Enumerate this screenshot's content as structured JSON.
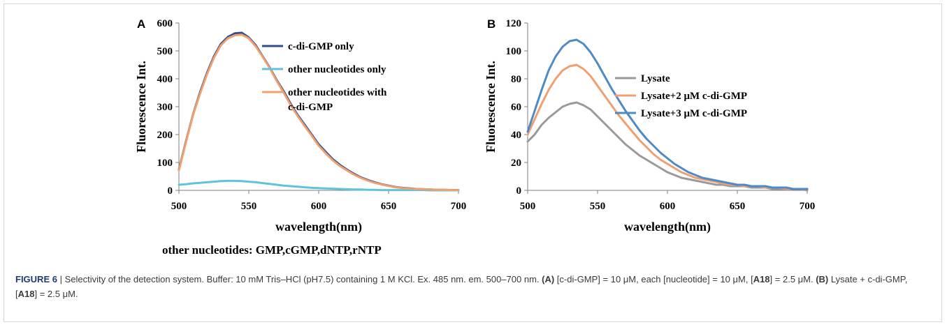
{
  "chart_data": [
    {
      "type": "line",
      "panel_label": "A",
      "ylabel": "Fluorescence Int.",
      "xlabel": "wavelength(nm)",
      "xlim": [
        500,
        700
      ],
      "ylim": [
        0,
        600
      ],
      "xticks": [
        500,
        550,
        600,
        650,
        700
      ],
      "yticks": [
        0,
        100,
        200,
        300,
        400,
        500,
        600
      ],
      "legend_position": "top-right",
      "x": [
        500,
        505,
        510,
        515,
        520,
        525,
        530,
        535,
        540,
        545,
        550,
        555,
        560,
        565,
        570,
        575,
        580,
        585,
        590,
        595,
        600,
        605,
        610,
        615,
        620,
        625,
        630,
        635,
        640,
        645,
        650,
        655,
        660,
        665,
        670,
        675,
        680,
        685,
        690,
        695,
        700
      ],
      "series": [
        {
          "name": "c-di-GMP only",
          "color": "#2e4d8f",
          "values": [
            75,
            175,
            270,
            350,
            420,
            480,
            525,
            550,
            563,
            565,
            548,
            520,
            480,
            440,
            395,
            355,
            310,
            270,
            235,
            200,
            165,
            138,
            112,
            92,
            75,
            60,
            47,
            37,
            29,
            22,
            17,
            12,
            9,
            7,
            5,
            4,
            3,
            2,
            2,
            1,
            1
          ]
        },
        {
          "name": "other nucleotides only",
          "color": "#5ec3df",
          "values": [
            20,
            22,
            25,
            27,
            29,
            31,
            33,
            34,
            34,
            33,
            31,
            29,
            26,
            23,
            20,
            17,
            15,
            13,
            11,
            9,
            8,
            7,
            6,
            5,
            4,
            3,
            3,
            2,
            2,
            1,
            1,
            1,
            1,
            1,
            1,
            1,
            0,
            0,
            0,
            0,
            0
          ]
        },
        {
          "name": "other nucleotides with c-di-GMP",
          "color": "#f0a070",
          "values": [
            72,
            172,
            268,
            345,
            415,
            475,
            520,
            545,
            556,
            558,
            545,
            516,
            478,
            438,
            392,
            350,
            305,
            266,
            230,
            196,
            160,
            133,
            108,
            88,
            72,
            57,
            45,
            35,
            27,
            21,
            16,
            11,
            8,
            6,
            5,
            4,
            3,
            2,
            2,
            1,
            1
          ]
        }
      ],
      "legend_entries": [
        {
          "lines": [
            "c-di-GMP only"
          ],
          "color": "#2e4d8f"
        },
        {
          "lines": [
            "other nucleotides only"
          ],
          "color": "#5ec3df"
        },
        {
          "lines": [
            "other nucleotides with",
            "c-di-GMP"
          ],
          "color": "#f0a070"
        }
      ]
    },
    {
      "type": "line",
      "panel_label": "B",
      "ylabel": "Fluorescence Int.",
      "xlabel": "wavelength(nm)",
      "xlim": [
        500,
        700
      ],
      "ylim": [
        0,
        120
      ],
      "xticks": [
        500,
        550,
        600,
        650,
        700
      ],
      "yticks": [
        0,
        20,
        40,
        60,
        80,
        100,
        120
      ],
      "legend_position": "top-right",
      "x": [
        500,
        505,
        510,
        515,
        520,
        525,
        530,
        535,
        540,
        545,
        550,
        555,
        560,
        565,
        570,
        575,
        580,
        585,
        590,
        595,
        600,
        605,
        610,
        615,
        620,
        625,
        630,
        635,
        640,
        645,
        650,
        655,
        660,
        665,
        670,
        675,
        680,
        685,
        690,
        695,
        700
      ],
      "series": [
        {
          "name": "Lysate",
          "color": "#9a9a9a",
          "values": [
            35,
            40,
            47,
            52,
            56,
            60,
            62,
            63,
            61,
            58,
            53,
            48,
            43,
            38,
            33,
            29,
            25,
            22,
            19,
            16,
            13,
            11,
            9,
            8,
            7,
            6,
            5,
            4,
            4,
            3,
            3,
            3,
            2,
            2,
            2,
            1,
            1,
            1,
            1,
            1,
            0
          ]
        },
        {
          "name": "Lysate+2 μM c-di-GMP",
          "color": "#f0a070",
          "values": [
            40,
            51,
            62,
            72,
            80,
            86,
            89,
            90,
            87,
            82,
            75,
            68,
            61,
            54,
            48,
            42,
            36,
            31,
            26,
            22,
            19,
            16,
            13,
            11,
            9,
            8,
            7,
            6,
            5,
            4,
            4,
            3,
            3,
            3,
            2,
            2,
            2,
            1,
            1,
            1,
            1
          ]
        },
        {
          "name": "Lysate+3 μM c-di-GMP",
          "color": "#4e8ac8",
          "values": [
            42,
            57,
            72,
            86,
            96,
            103,
            107,
            108,
            105,
            99,
            91,
            82,
            73,
            65,
            57,
            50,
            43,
            37,
            32,
            27,
            23,
            19,
            16,
            13,
            11,
            9,
            8,
            7,
            6,
            5,
            4,
            4,
            3,
            3,
            3,
            2,
            2,
            2,
            1,
            1,
            1
          ]
        }
      ],
      "legend_entries": [
        {
          "lines": [
            "Lysate"
          ],
          "color": "#9a9a9a"
        },
        {
          "lines": [
            "Lysate+2 μM c-di-GMP"
          ],
          "color": "#f0a070"
        },
        {
          "lines": [
            "Lysate+3 μM c-di-GMP"
          ],
          "color": "#4e8ac8"
        }
      ]
    }
  ],
  "note_text": "other nucleotides: GMP,cGMP,dNTP,rNTP",
  "caption": {
    "figure_label": "FIGURE 6",
    "separator": " | ",
    "text_intro": "Selectivity of the detection system. Buffer: 10 mM Tris–HCl (pH7.5) containing 1 M KCl. Ex. 485 nm. em. 500–700 nm. ",
    "part_a_label": "(A)",
    "part_a_text_1": " [c-di-GMP] = 10 μM, each [nucleotide] = 10 μM, [",
    "part_a_bold": "A18",
    "part_a_text_2": "] = 2.5 μM. ",
    "part_b_label": "(B)",
    "part_b_text_1": " Lysate + c-di-GMP, [",
    "part_b_bold": "A18",
    "part_b_text_2": "] = 2.5 μM."
  }
}
